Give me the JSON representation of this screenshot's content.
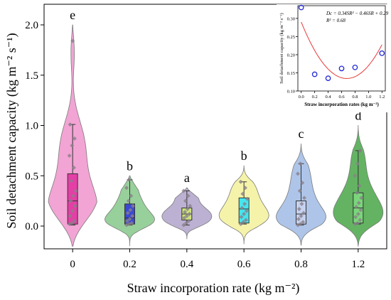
{
  "chart_data": [
    {
      "type": "violin",
      "xlabel": "Straw incorporation rate (kg m⁻²)",
      "ylabel": "Soil detachment capacity (kg m⁻² s⁻¹)",
      "ylim": [
        -0.25,
        2.15
      ],
      "yticks": [
        "0.0",
        "0.5",
        "1.0",
        "1.5",
        "2.0"
      ],
      "categories": [
        "0",
        "0.2",
        "0.4",
        "0.6",
        "0.8",
        "1.2"
      ],
      "letters": [
        "e",
        "b",
        "a",
        "b",
        "c",
        "d"
      ],
      "colors": [
        "#ee85c6",
        "#76c07a",
        "#a597c3",
        "#f1ef8e",
        "#93b2e2",
        "#2f9a2f"
      ],
      "box_colors": [
        "#e43fa6",
        "#3a49d4",
        "#cce27d",
        "#44e6f0",
        "#c5d2f0",
        "#7ad67a"
      ],
      "series": [
        {
          "name": "0",
          "q1": 0.02,
          "median": 0.25,
          "q3": 0.52,
          "whisker_low": 0.01,
          "whisker_high": 1.01,
          "violin_min": -0.2,
          "violin_max": 2.0,
          "points": [
            0.02,
            0.03,
            0.05,
            0.1,
            0.15,
            0.2,
            0.25,
            0.3,
            0.35,
            0.45,
            0.58,
            0.7,
            0.8,
            0.87,
            1.01,
            1.84
          ]
        },
        {
          "name": "0.2",
          "q1": 0.02,
          "median": 0.08,
          "q3": 0.22,
          "whisker_low": 0.01,
          "whisker_high": 0.46,
          "violin_min": -0.2,
          "violin_max": 0.5,
          "points": [
            0.01,
            0.02,
            0.03,
            0.05,
            0.07,
            0.1,
            0.13,
            0.16,
            0.2,
            0.25,
            0.3,
            0.38,
            0.46
          ]
        },
        {
          "name": "0.4",
          "q1": 0.06,
          "median": 0.12,
          "q3": 0.18,
          "whisker_low": 0.01,
          "whisker_high": 0.35,
          "violin_min": -0.13,
          "violin_max": 0.38,
          "points": [
            0.01,
            0.03,
            0.05,
            0.08,
            0.1,
            0.12,
            0.14,
            0.17,
            0.2,
            0.25,
            0.3,
            0.35
          ]
        },
        {
          "name": "0.6",
          "q1": 0.03,
          "median": 0.17,
          "q3": 0.28,
          "whisker_low": 0.02,
          "whisker_high": 0.44,
          "violin_min": -0.18,
          "violin_max": 0.6,
          "points": [
            0.02,
            0.04,
            0.06,
            0.09,
            0.12,
            0.15,
            0.18,
            0.22,
            0.27,
            0.32,
            0.38,
            0.44
          ]
        },
        {
          "name": "0.8",
          "q1": 0.02,
          "median": 0.12,
          "q3": 0.25,
          "whisker_low": 0.01,
          "whisker_high": 0.62,
          "violin_min": -0.19,
          "violin_max": 0.82,
          "points": [
            0.01,
            0.02,
            0.04,
            0.07,
            0.1,
            0.13,
            0.17,
            0.22,
            0.28,
            0.35,
            0.43,
            0.52,
            0.62
          ]
        },
        {
          "name": "1.2",
          "q1": 0.03,
          "median": 0.18,
          "q3": 0.33,
          "whisker_low": 0.02,
          "whisker_high": 0.75,
          "violin_min": -0.2,
          "violin_max": 1.0,
          "points": [
            0.02,
            0.03,
            0.06,
            0.09,
            0.12,
            0.16,
            0.19,
            0.23,
            0.28,
            0.33,
            0.4,
            0.5,
            0.62,
            0.75
          ]
        }
      ]
    },
    {
      "type": "scatter",
      "annotation": {
        "equation": "Dc = 0.34SR² − 0.46SR + 0.29",
        "r2": "R² = 0.68"
      },
      "xlabel": "Straw incorporation rates (kg m⁻²)",
      "ylabel": "Soil detachment capacity (kg m⁻² s⁻¹)",
      "xlim": [
        -0.05,
        1.25
      ],
      "ylim": [
        0.1,
        0.335
      ],
      "xticks": [
        "0.0",
        "0.2",
        "0.4",
        "0.6",
        "0.8",
        "1.0",
        "1.2"
      ],
      "yticks": [
        "0.10",
        "0.15",
        "0.20",
        "0.25",
        "0.30"
      ],
      "x": [
        0.0,
        0.2,
        0.4,
        0.6,
        0.8,
        1.2
      ],
      "y": [
        0.33,
        0.146,
        0.135,
        0.162,
        0.165,
        0.204
      ],
      "fit": {
        "a": 0.34,
        "b": -0.46,
        "c": 0.29
      }
    }
  ],
  "colors": {
    "fit_line": "#e83a3a",
    "points": "#2229d6",
    "axis": "#000000"
  }
}
